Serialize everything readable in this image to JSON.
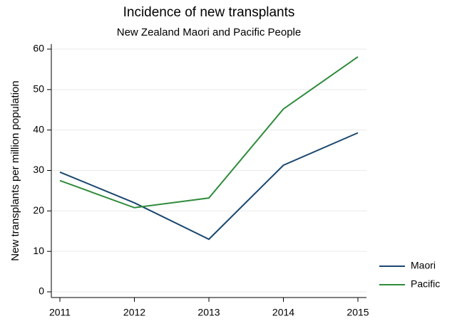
{
  "chart_data": {
    "type": "line",
    "title": "Incidence of new transplants",
    "subtitle": "New Zealand Maori and Pacific People",
    "y_label": "New transplants per million population",
    "x": [
      2011,
      2012,
      2013,
      2014,
      2015
    ],
    "series": [
      {
        "name": "Maori",
        "color": "#1a476f",
        "values": [
          29.6,
          22.0,
          13.0,
          31.3,
          39.3
        ]
      },
      {
        "name": "Pacific",
        "color": "#2e8b3a",
        "values": [
          27.5,
          20.8,
          23.2,
          45.2,
          58.1
        ]
      }
    ],
    "xlim": [
      2011,
      2015
    ],
    "xticks": [
      2011,
      2012,
      2013,
      2014,
      2015
    ],
    "ylim": [
      0,
      60
    ],
    "yticks": [
      0,
      10,
      20,
      30,
      40,
      50,
      60
    ],
    "grid": true,
    "legend": "right"
  }
}
